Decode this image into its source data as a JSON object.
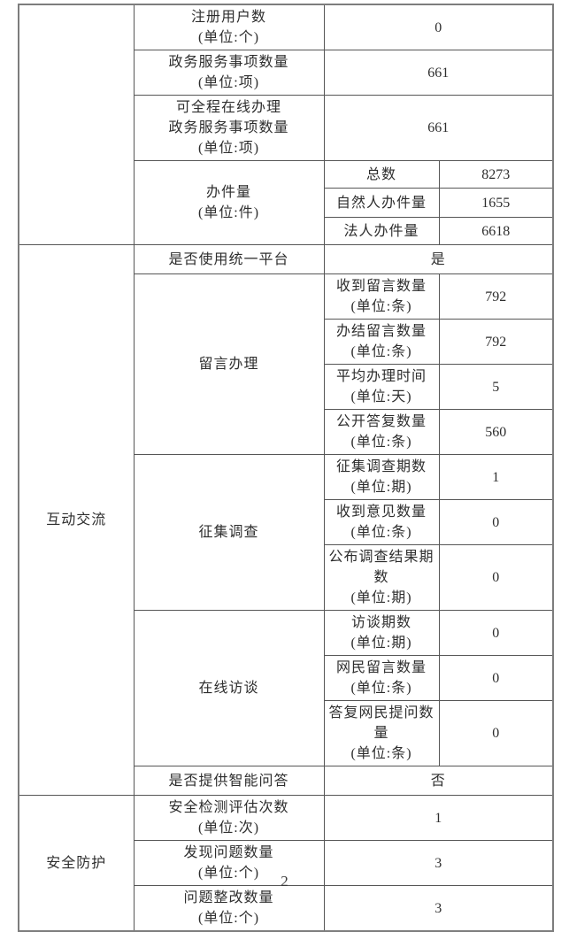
{
  "page_number": "2",
  "colors": {
    "border": "#565656",
    "outer_border": "#7d7d7d",
    "text": "#2e2e2e",
    "background": "#ffffff"
  },
  "table": {
    "top_section": {
      "category": "",
      "simple_rows": [
        {
          "label": "注册用户数\n(单位:个)",
          "value": "0"
        },
        {
          "label": "政务服务事项数量\n(单位:项)",
          "value": "661"
        },
        {
          "label": "可全程在线办理\n政务服务事项数量\n(单位:项)",
          "value": "661"
        }
      ],
      "case_group": {
        "label": "办件量\n(单位:件)",
        "rows": [
          {
            "label": "总数",
            "value": "8273"
          },
          {
            "label": "自然人办件量",
            "value": "1655"
          },
          {
            "label": "法人办件量",
            "value": "6618"
          }
        ]
      }
    },
    "interaction_section": {
      "category": "互动交流",
      "unified_platform": {
        "label": "是否使用统一平台",
        "value": "是"
      },
      "message_group": {
        "label": "留言办理",
        "rows": [
          {
            "label": "收到留言数量\n(单位:条)",
            "value": "792"
          },
          {
            "label": "办结留言数量\n(单位:条)",
            "value": "792"
          },
          {
            "label": "平均办理时间\n(单位:天)",
            "value": "5"
          },
          {
            "label": "公开答复数量\n(单位:条)",
            "value": "560"
          }
        ]
      },
      "survey_group": {
        "label": "征集调查",
        "rows": [
          {
            "label": "征集调查期数\n(单位:期)",
            "value": "1"
          },
          {
            "label": "收到意见数量\n(单位:条)",
            "value": "0"
          },
          {
            "label": "公布调查结果期数\n(单位:期)",
            "value": "0"
          }
        ]
      },
      "interview_group": {
        "label": "在线访谈",
        "rows": [
          {
            "label": "访谈期数\n(单位:期)",
            "value": "0"
          },
          {
            "label": "网民留言数量\n(单位:条)",
            "value": "0"
          },
          {
            "label": "答复网民提问数量\n(单位:条)",
            "value": "0"
          }
        ]
      },
      "smart_qa": {
        "label": "是否提供智能问答",
        "value": "否"
      }
    },
    "security_section": {
      "category": "安全防护",
      "simple_rows": [
        {
          "label": "安全检测评估次数\n(单位:次)",
          "value": "1"
        },
        {
          "label": "发现问题数量\n(单位:个)",
          "value": "3"
        },
        {
          "label": "问题整改数量\n(单位:个)",
          "value": "3"
        }
      ]
    }
  }
}
